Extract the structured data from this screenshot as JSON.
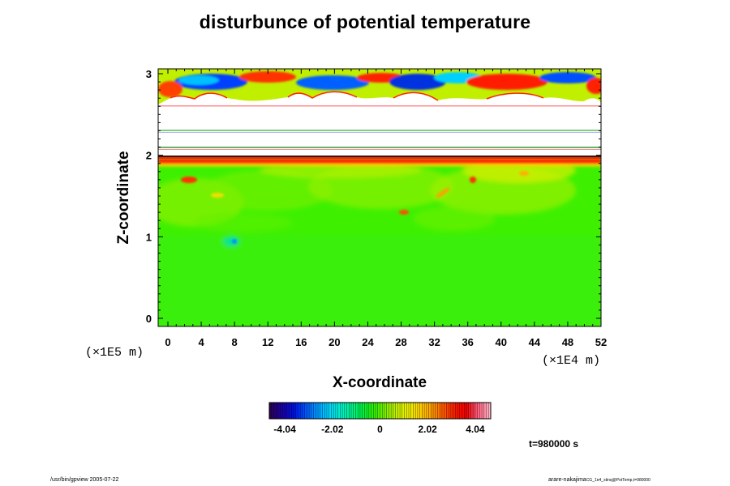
{
  "title": "disturbunce of potential temperature",
  "time_label": "t=980000 s",
  "footer": {
    "left": "/usr/bin/gpview 2005-07-22",
    "right_main": "arare-nakajima",
    "right_small": "CG_1e4_stinq@PotTemp,t=980000"
  },
  "colors": {
    "colorbar": [
      "#2a0055",
      "#1a00a0",
      "#0010e0",
      "#0050ff",
      "#0095ff",
      "#00d0ff",
      "#00f0d0",
      "#00f090",
      "#00f040",
      "#30f000",
      "#80f000",
      "#c8f000",
      "#f0f000",
      "#ffd000",
      "#ff9a00",
      "#ff5a00",
      "#ff1a00",
      "#f00000",
      "#ff6080",
      "#ffb0c0"
    ]
  },
  "chart_data": {
    "type": "heatmap",
    "title": "disturbunce of potential temperature",
    "xlabel": "X-coordinate",
    "ylabel": "Z-coordinate",
    "x_unit": "(×1E4 m)",
    "y_unit": "(×1E5 m)",
    "xlim": [
      0,
      52
    ],
    "ylim": [
      0,
      3
    ],
    "x_ticks": [
      0,
      4,
      8,
      12,
      16,
      20,
      24,
      28,
      32,
      36,
      40,
      44,
      48,
      52
    ],
    "x_tick_labels": [
      "0",
      "4",
      "8",
      "12",
      "16",
      "20",
      "24",
      "28",
      "32",
      "36",
      "40",
      "44",
      "48",
      "52"
    ],
    "y_ticks": [
      0,
      1,
      2,
      3
    ],
    "y_tick_labels": [
      "0",
      "1",
      "2",
      "3"
    ],
    "colorbar": {
      "min": -4.04,
      "max": 4.04,
      "ticks": [
        -4.04,
        -2.02,
        0,
        2.02,
        4.04
      ],
      "tick_labels": [
        "-4.04",
        "-2.02",
        "0",
        "2.02",
        "4.04"
      ]
    }
  }
}
